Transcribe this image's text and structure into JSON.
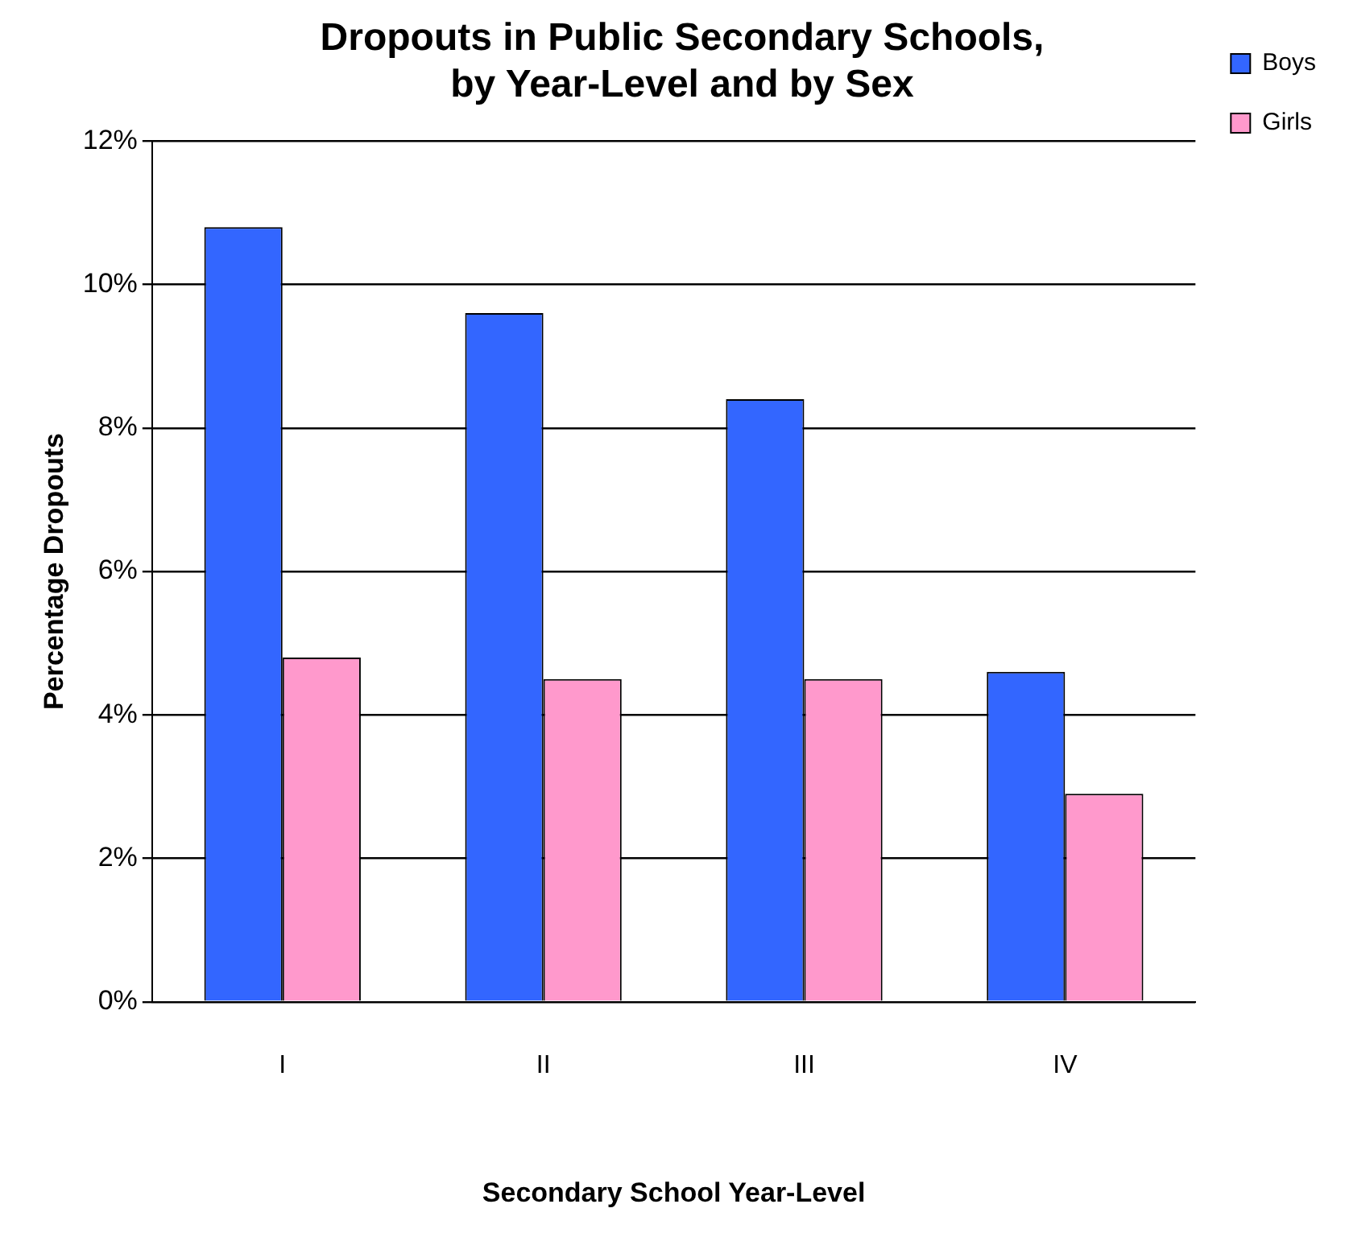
{
  "chart_data": {
    "type": "bar",
    "title": [
      "Dropouts in Public Secondary Schools,",
      "by Year-Level and by Sex"
    ],
    "xlabel": "Secondary School Year-Level",
    "ylabel": "Percentage Dropouts",
    "categories": [
      "I",
      "II",
      "III",
      "IV"
    ],
    "series": [
      {
        "name": "Boys",
        "color": "#3366ff",
        "values": [
          10.8,
          9.6,
          8.4,
          4.6
        ]
      },
      {
        "name": "Girls",
        "color": "#ff99cc",
        "values": [
          4.8,
          4.5,
          4.5,
          2.9
        ]
      }
    ],
    "ylim": [
      0,
      12
    ],
    "yticks": [
      {
        "value": 0,
        "label": "0%"
      },
      {
        "value": 2,
        "label": "2%"
      },
      {
        "value": 4,
        "label": "4%"
      },
      {
        "value": 6,
        "label": "6%"
      },
      {
        "value": 8,
        "label": "8%"
      },
      {
        "value": 10,
        "label": "10%"
      },
      {
        "value": 12,
        "label": "12%"
      }
    ],
    "grid": "y",
    "legend": "top right"
  }
}
